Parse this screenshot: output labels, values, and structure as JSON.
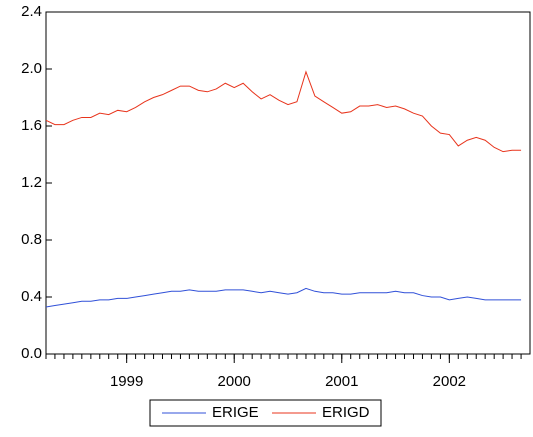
{
  "chart_data": {
    "type": "line",
    "x": [
      1998.75,
      1998.833,
      1998.917,
      1999.0,
      1999.083,
      1999.167,
      1999.25,
      1999.333,
      1999.417,
      1999.5,
      1999.583,
      1999.667,
      1999.75,
      1999.833,
      1999.917,
      2000.0,
      2000.083,
      2000.167,
      2000.25,
      2000.333,
      2000.417,
      2000.5,
      2000.583,
      2000.667,
      2000.75,
      2000.833,
      2000.917,
      2001.0,
      2001.083,
      2001.167,
      2001.25,
      2001.333,
      2001.417,
      2001.5,
      2001.583,
      2001.667,
      2001.75,
      2001.833,
      2001.917,
      2002.0,
      2002.083,
      2002.167,
      2002.25,
      2002.333,
      2002.417,
      2002.5,
      2002.583,
      2002.667,
      2002.75,
      2002.833,
      2002.917,
      2003.0,
      2003.083,
      2003.167
    ],
    "series": [
      {
        "name": "ERIGE",
        "color": "#3050d8",
        "values": [
          0.33,
          0.34,
          0.35,
          0.36,
          0.37,
          0.37,
          0.38,
          0.38,
          0.39,
          0.39,
          0.4,
          0.41,
          0.42,
          0.43,
          0.44,
          0.44,
          0.45,
          0.44,
          0.44,
          0.44,
          0.45,
          0.45,
          0.45,
          0.44,
          0.43,
          0.44,
          0.43,
          0.42,
          0.43,
          0.46,
          0.44,
          0.43,
          0.43,
          0.42,
          0.42,
          0.43,
          0.43,
          0.43,
          0.43,
          0.44,
          0.43,
          0.43,
          0.41,
          0.4,
          0.4,
          0.38,
          0.39,
          0.4,
          0.39,
          0.38,
          0.38,
          0.38,
          0.38,
          0.38
        ]
      },
      {
        "name": "ERIGD",
        "color": "#e8341c",
        "values": [
          1.64,
          1.61,
          1.61,
          1.64,
          1.66,
          1.66,
          1.69,
          1.68,
          1.71,
          1.7,
          1.73,
          1.77,
          1.8,
          1.82,
          1.85,
          1.88,
          1.88,
          1.85,
          1.84,
          1.86,
          1.9,
          1.87,
          1.9,
          1.84,
          1.79,
          1.82,
          1.78,
          1.75,
          1.77,
          1.98,
          1.81,
          1.77,
          1.73,
          1.69,
          1.7,
          1.74,
          1.74,
          1.75,
          1.73,
          1.74,
          1.72,
          1.69,
          1.67,
          1.6,
          1.55,
          1.54,
          1.46,
          1.5,
          1.52,
          1.5,
          1.45,
          1.42,
          1.43,
          1.43
        ]
      }
    ],
    "xlim": [
      1998.75,
      2003.25
    ],
    "xticks": [
      {
        "value": 1999.5,
        "label": "1999"
      },
      {
        "value": 2000.5,
        "label": "2000"
      },
      {
        "value": 2001.5,
        "label": "2001"
      },
      {
        "value": 2002.5,
        "label": "2002"
      }
    ],
    "ylim": [
      0,
      2.4
    ],
    "yticks": [
      {
        "value": 0,
        "label": "0.0"
      },
      0.4,
      0.8,
      1.2,
      1.6,
      {
        "value": 2,
        "label": "2.0"
      },
      2.4
    ],
    "grid": false,
    "legend": "bottom"
  }
}
